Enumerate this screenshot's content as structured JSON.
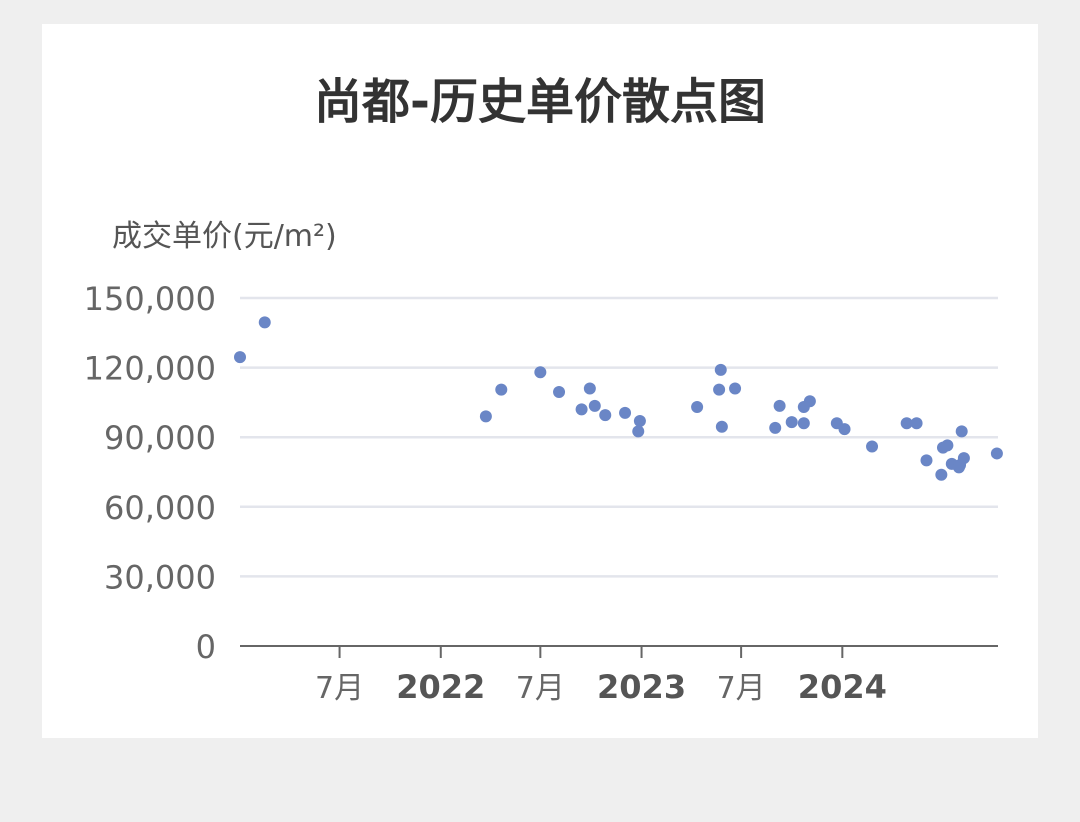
{
  "chart_data": {
    "type": "scatter",
    "title": "尚都-历史单价散点图",
    "ylabel": "成交单价(元/m²)",
    "xlabel": "",
    "ylim": [
      0,
      150000
    ],
    "ytick_labels": [
      "0",
      "30,000",
      "60,000",
      "90,000",
      "120,000",
      "150,000"
    ],
    "ytick_values": [
      0,
      30000,
      60000,
      90000,
      120000,
      150000
    ],
    "xtick_labels": [
      {
        "date": "2021-07-01",
        "label": "7月",
        "bold": false
      },
      {
        "date": "2022-01-01",
        "label": "2022",
        "bold": true
      },
      {
        "date": "2022-07-01",
        "label": "7月",
        "bold": false
      },
      {
        "date": "2023-01-01",
        "label": "2023",
        "bold": true
      },
      {
        "date": "2023-07-01",
        "label": "7月",
        "bold": false
      },
      {
        "date": "2024-01-01",
        "label": "2024",
        "bold": true
      }
    ],
    "xlim": [
      "2021-01-01",
      "2024-10-10"
    ],
    "grid": "horizontal",
    "point_color": "#6a86c6",
    "points": [
      {
        "x": "2021-01-01",
        "y": 124500
      },
      {
        "x": "2021-02-15",
        "y": 139500
      },
      {
        "x": "2022-03-24",
        "y": 99000
      },
      {
        "x": "2022-04-21",
        "y": 110500
      },
      {
        "x": "2022-07-01",
        "y": 118000
      },
      {
        "x": "2022-08-04",
        "y": 109500
      },
      {
        "x": "2022-09-14",
        "y": 102000
      },
      {
        "x": "2022-09-29",
        "y": 111000
      },
      {
        "x": "2022-10-08",
        "y": 103500
      },
      {
        "x": "2022-10-27",
        "y": 99500
      },
      {
        "x": "2022-12-02",
        "y": 100500
      },
      {
        "x": "2022-12-26",
        "y": 92500
      },
      {
        "x": "2022-12-29",
        "y": 97000
      },
      {
        "x": "2023-04-12",
        "y": 103000
      },
      {
        "x": "2023-05-22",
        "y": 110500
      },
      {
        "x": "2023-05-25",
        "y": 119000
      },
      {
        "x": "2023-05-27",
        "y": 94500
      },
      {
        "x": "2023-06-20",
        "y": 111000
      },
      {
        "x": "2023-09-01",
        "y": 94000
      },
      {
        "x": "2023-09-09",
        "y": 103500
      },
      {
        "x": "2023-10-01",
        "y": 96500
      },
      {
        "x": "2023-10-23",
        "y": 103000
      },
      {
        "x": "2023-10-23",
        "y": 96000
      },
      {
        "x": "2023-11-03",
        "y": 105500
      },
      {
        "x": "2023-12-22",
        "y": 96000
      },
      {
        "x": "2024-01-05",
        "y": 93500
      },
      {
        "x": "2024-02-24",
        "y": 86000
      },
      {
        "x": "2024-04-27",
        "y": 96000
      },
      {
        "x": "2024-05-15",
        "y": 96000
      },
      {
        "x": "2024-06-02",
        "y": 80000
      },
      {
        "x": "2024-06-29",
        "y": 73800
      },
      {
        "x": "2024-07-02",
        "y": 85500
      },
      {
        "x": "2024-07-10",
        "y": 86500
      },
      {
        "x": "2024-07-18",
        "y": 78500
      },
      {
        "x": "2024-07-31",
        "y": 77000
      },
      {
        "x": "2024-08-02",
        "y": 78000
      },
      {
        "x": "2024-08-05",
        "y": 92500
      },
      {
        "x": "2024-08-09",
        "y": 81000
      },
      {
        "x": "2024-10-08",
        "y": 83000
      }
    ]
  }
}
